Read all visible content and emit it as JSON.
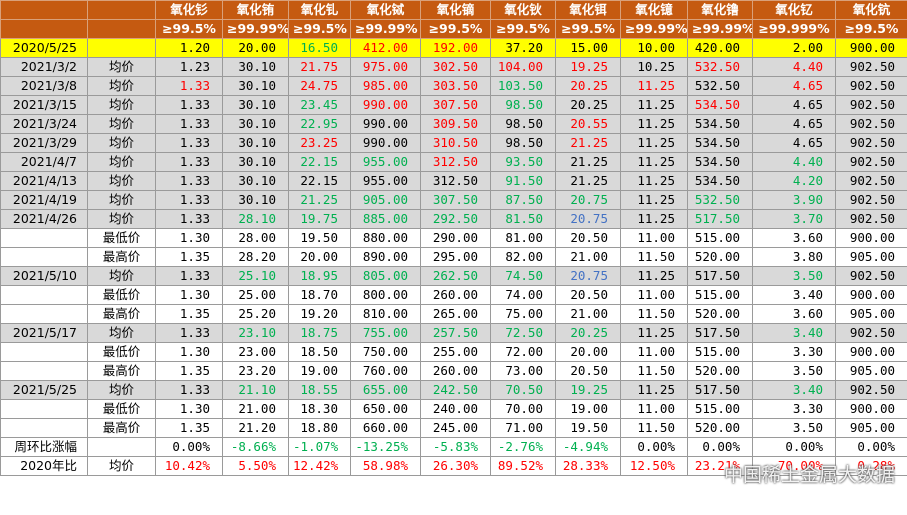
{
  "header": {
    "names": [
      "氧化钐",
      "氧化铕",
      "氧化钆",
      "氧化铽",
      "氧化镝",
      "氧化钬",
      "氧化铒",
      "氧化镱",
      "氧化镥",
      "氧化钇",
      "氧化钪"
    ],
    "purity": [
      "≥99.5%",
      "≥99.99%",
      "≥99.5%",
      "≥99.99%",
      "≥99.5%",
      "≥99.5%",
      "≥99.5%",
      "≥99.99%",
      "≥99.99%",
      "≥99.999%",
      "≥99.5%"
    ]
  },
  "rows": [
    {
      "date": "2020/5/25",
      "style": "base",
      "values": [
        "1.20",
        "20.00",
        "16.50",
        "412.00",
        "192.00",
        "37.20",
        "15.00",
        "10.00",
        "420.00",
        "2.00",
        "900.00"
      ],
      "colors": [
        "#000000",
        "#000000",
        "#00b050",
        "#ff0000",
        "#ff0000",
        "#000000",
        "#000000",
        "#000000",
        "#000000",
        "#000000",
        "#000000"
      ]
    },
    {
      "date": "2021/3/2",
      "type": "均价",
      "style": "avg",
      "values": [
        "1.23",
        "30.10",
        "21.75",
        "975.00",
        "302.50",
        "104.00",
        "19.25",
        "10.25",
        "532.50",
        "4.40",
        "902.50"
      ],
      "colors": [
        "#000000",
        "#000000",
        "#ff0000",
        "#ff0000",
        "#ff0000",
        "#ff0000",
        "#ff0000",
        "#000000",
        "#ff0000",
        "#ff0000",
        "#000000"
      ]
    },
    {
      "date": "2021/3/8",
      "type": "均价",
      "style": "avg",
      "values": [
        "1.33",
        "30.10",
        "24.75",
        "985.00",
        "303.50",
        "103.50",
        "20.25",
        "11.25",
        "532.50",
        "4.65",
        "902.50"
      ],
      "colors": [
        "#ff0000",
        "#000000",
        "#ff0000",
        "#ff0000",
        "#ff0000",
        "#00b050",
        "#ff0000",
        "#ff0000",
        "#000000",
        "#ff0000",
        "#000000"
      ]
    },
    {
      "date": "2021/3/15",
      "type": "均价",
      "style": "avg",
      "values": [
        "1.33",
        "30.10",
        "23.45",
        "990.00",
        "307.50",
        "98.50",
        "20.25",
        "11.25",
        "534.50",
        "4.65",
        "902.50"
      ],
      "colors": [
        "#000000",
        "#000000",
        "#00b050",
        "#ff0000",
        "#ff0000",
        "#00b050",
        "#000000",
        "#000000",
        "#ff0000",
        "#000000",
        "#000000"
      ]
    },
    {
      "date": "2021/3/24",
      "type": "均价",
      "style": "avg",
      "values": [
        "1.33",
        "30.10",
        "22.95",
        "990.00",
        "309.50",
        "98.50",
        "20.55",
        "11.25",
        "534.50",
        "4.65",
        "902.50"
      ],
      "colors": [
        "#000000",
        "#000000",
        "#00b050",
        "#000000",
        "#ff0000",
        "#000000",
        "#ff0000",
        "#000000",
        "#000000",
        "#000000",
        "#000000"
      ]
    },
    {
      "date": "2021/3/29",
      "type": "均价",
      "style": "avg",
      "values": [
        "1.33",
        "30.10",
        "23.25",
        "990.00",
        "310.50",
        "98.50",
        "21.25",
        "11.25",
        "534.50",
        "4.65",
        "902.50"
      ],
      "colors": [
        "#000000",
        "#000000",
        "#ff0000",
        "#000000",
        "#ff0000",
        "#000000",
        "#ff0000",
        "#000000",
        "#000000",
        "#000000",
        "#000000"
      ]
    },
    {
      "date": "2021/4/7",
      "type": "均价",
      "style": "avg",
      "values": [
        "1.33",
        "30.10",
        "22.15",
        "955.00",
        "312.50",
        "93.50",
        "21.25",
        "11.25",
        "534.50",
        "4.40",
        "902.50"
      ],
      "colors": [
        "#000000",
        "#000000",
        "#00b050",
        "#00b050",
        "#ff0000",
        "#00b050",
        "#000000",
        "#000000",
        "#000000",
        "#00b050",
        "#000000"
      ]
    },
    {
      "date": "2021/4/13",
      "type": "均价",
      "style": "avg",
      "values": [
        "1.33",
        "30.10",
        "22.15",
        "955.00",
        "312.50",
        "91.50",
        "21.25",
        "11.25",
        "534.50",
        "4.20",
        "902.50"
      ],
      "colors": [
        "#000000",
        "#000000",
        "#000000",
        "#000000",
        "#000000",
        "#00b050",
        "#000000",
        "#000000",
        "#000000",
        "#00b050",
        "#000000"
      ]
    },
    {
      "date": "2021/4/19",
      "type": "均价",
      "style": "avg",
      "values": [
        "1.33",
        "30.10",
        "21.25",
        "905.00",
        "307.50",
        "87.50",
        "20.75",
        "11.25",
        "532.50",
        "3.90",
        "902.50"
      ],
      "colors": [
        "#000000",
        "#000000",
        "#00b050",
        "#00b050",
        "#00b050",
        "#00b050",
        "#00b050",
        "#000000",
        "#00b050",
        "#00b050",
        "#000000"
      ]
    },
    {
      "date": "2021/4/26",
      "type": "均价",
      "style": "avg",
      "values": [
        "1.33",
        "28.10",
        "19.75",
        "885.00",
        "292.50",
        "81.50",
        "20.75",
        "11.25",
        "517.50",
        "3.70",
        "902.50"
      ],
      "colors": [
        "#000000",
        "#00b050",
        "#00b050",
        "#00b050",
        "#00b050",
        "#00b050",
        "#4472c4",
        "#000000",
        "#00b050",
        "#00b050",
        "#000000"
      ]
    },
    {
      "type": "最低价",
      "style": "plain",
      "values": [
        "1.30",
        "28.00",
        "19.50",
        "880.00",
        "290.00",
        "81.00",
        "20.50",
        "11.00",
        "515.00",
        "3.60",
        "900.00"
      ],
      "colors": [
        "#000000",
        "#000000",
        "#000000",
        "#000000",
        "#000000",
        "#000000",
        "#000000",
        "#000000",
        "#000000",
        "#000000",
        "#000000"
      ]
    },
    {
      "type": "最高价",
      "style": "plain",
      "values": [
        "1.35",
        "28.20",
        "20.00",
        "890.00",
        "295.00",
        "82.00",
        "21.00",
        "11.50",
        "520.00",
        "3.80",
        "905.00"
      ],
      "colors": [
        "#000000",
        "#000000",
        "#000000",
        "#000000",
        "#000000",
        "#000000",
        "#000000",
        "#000000",
        "#000000",
        "#000000",
        "#000000"
      ]
    },
    {
      "date": "2021/5/10",
      "type": "均价",
      "style": "avg",
      "values": [
        "1.33",
        "25.10",
        "18.95",
        "805.00",
        "262.50",
        "74.50",
        "20.75",
        "11.25",
        "517.50",
        "3.50",
        "902.50"
      ],
      "colors": [
        "#000000",
        "#00b050",
        "#00b050",
        "#00b050",
        "#00b050",
        "#00b050",
        "#4472c4",
        "#000000",
        "#000000",
        "#00b050",
        "#000000"
      ]
    },
    {
      "type": "最低价",
      "style": "plain",
      "values": [
        "1.30",
        "25.00",
        "18.70",
        "800.00",
        "260.00",
        "74.00",
        "20.50",
        "11.00",
        "515.00",
        "3.40",
        "900.00"
      ],
      "colors": [
        "#000000",
        "#000000",
        "#000000",
        "#000000",
        "#000000",
        "#000000",
        "#000000",
        "#000000",
        "#000000",
        "#000000",
        "#000000"
      ]
    },
    {
      "type": "最高价",
      "style": "plain",
      "values": [
        "1.35",
        "25.20",
        "19.20",
        "810.00",
        "265.00",
        "75.00",
        "21.00",
        "11.50",
        "520.00",
        "3.60",
        "905.00"
      ],
      "colors": [
        "#000000",
        "#000000",
        "#000000",
        "#000000",
        "#000000",
        "#000000",
        "#000000",
        "#000000",
        "#000000",
        "#000000",
        "#000000"
      ]
    },
    {
      "date": "2021/5/17",
      "type": "均价",
      "style": "avg",
      "values": [
        "1.33",
        "23.10",
        "18.75",
        "755.00",
        "257.50",
        "72.50",
        "20.25",
        "11.25",
        "517.50",
        "3.40",
        "902.50"
      ],
      "colors": [
        "#000000",
        "#00b050",
        "#00b050",
        "#00b050",
        "#00b050",
        "#00b050",
        "#00b050",
        "#000000",
        "#000000",
        "#00b050",
        "#000000"
      ]
    },
    {
      "type": "最低价",
      "style": "plain",
      "values": [
        "1.30",
        "23.00",
        "18.50",
        "750.00",
        "255.00",
        "72.00",
        "20.00",
        "11.00",
        "515.00",
        "3.30",
        "900.00"
      ],
      "colors": [
        "#000000",
        "#000000",
        "#000000",
        "#000000",
        "#000000",
        "#000000",
        "#000000",
        "#000000",
        "#000000",
        "#000000",
        "#000000"
      ]
    },
    {
      "type": "最高价",
      "style": "plain",
      "values": [
        "1.35",
        "23.20",
        "19.00",
        "760.00",
        "260.00",
        "73.00",
        "20.50",
        "11.50",
        "520.00",
        "3.50",
        "905.00"
      ],
      "colors": [
        "#000000",
        "#000000",
        "#000000",
        "#000000",
        "#000000",
        "#000000",
        "#000000",
        "#000000",
        "#000000",
        "#000000",
        "#000000"
      ]
    },
    {
      "date": "2021/5/25",
      "type": "均价",
      "style": "avg",
      "values": [
        "1.33",
        "21.10",
        "18.55",
        "655.00",
        "242.50",
        "70.50",
        "19.25",
        "11.25",
        "517.50",
        "3.40",
        "902.50"
      ],
      "colors": [
        "#000000",
        "#00b050",
        "#00b050",
        "#00b050",
        "#00b050",
        "#00b050",
        "#00b050",
        "#000000",
        "#000000",
        "#00b050",
        "#000000"
      ]
    },
    {
      "type": "最低价",
      "style": "plain",
      "values": [
        "1.30",
        "21.00",
        "18.30",
        "650.00",
        "240.00",
        "70.00",
        "19.00",
        "11.00",
        "515.00",
        "3.30",
        "900.00"
      ],
      "colors": [
        "#000000",
        "#000000",
        "#000000",
        "#000000",
        "#000000",
        "#000000",
        "#000000",
        "#000000",
        "#000000",
        "#000000",
        "#000000"
      ]
    },
    {
      "type": "最高价",
      "style": "plain",
      "values": [
        "1.35",
        "21.20",
        "18.80",
        "660.00",
        "245.00",
        "71.00",
        "19.50",
        "11.50",
        "520.00",
        "3.50",
        "905.00"
      ],
      "colors": [
        "#000000",
        "#000000",
        "#000000",
        "#000000",
        "#000000",
        "#000000",
        "#000000",
        "#000000",
        "#000000",
        "#000000",
        "#000000"
      ]
    },
    {
      "date": "周环比涨幅",
      "style": "plain",
      "values": [
        "0.00%",
        "-8.66%",
        "-1.07%",
        "-13.25%",
        "-5.83%",
        "-2.76%",
        "-4.94%",
        "0.00%",
        "0.00%",
        "0.00%",
        "0.00%"
      ],
      "colors": [
        "#000000",
        "#00b050",
        "#00b050",
        "#00b050",
        "#00b050",
        "#00b050",
        "#00b050",
        "#000000",
        "#000000",
        "#000000",
        "#000000"
      ]
    },
    {
      "date": "2020年比",
      "type": "均价",
      "style": "plain",
      "values": [
        "10.42%",
        "5.50%",
        "12.42%",
        "58.98%",
        "26.30%",
        "89.52%",
        "28.33%",
        "12.50%",
        "23.21%",
        "70.00%",
        "0.28%"
      ],
      "colors": [
        "#ff0000",
        "#ff0000",
        "#ff0000",
        "#ff0000",
        "#ff0000",
        "#ff0000",
        "#ff0000",
        "#ff0000",
        "#ff0000",
        "#ff0000",
        "#ff0000"
      ]
    }
  ],
  "watermark": "中国稀土金属大数据"
}
